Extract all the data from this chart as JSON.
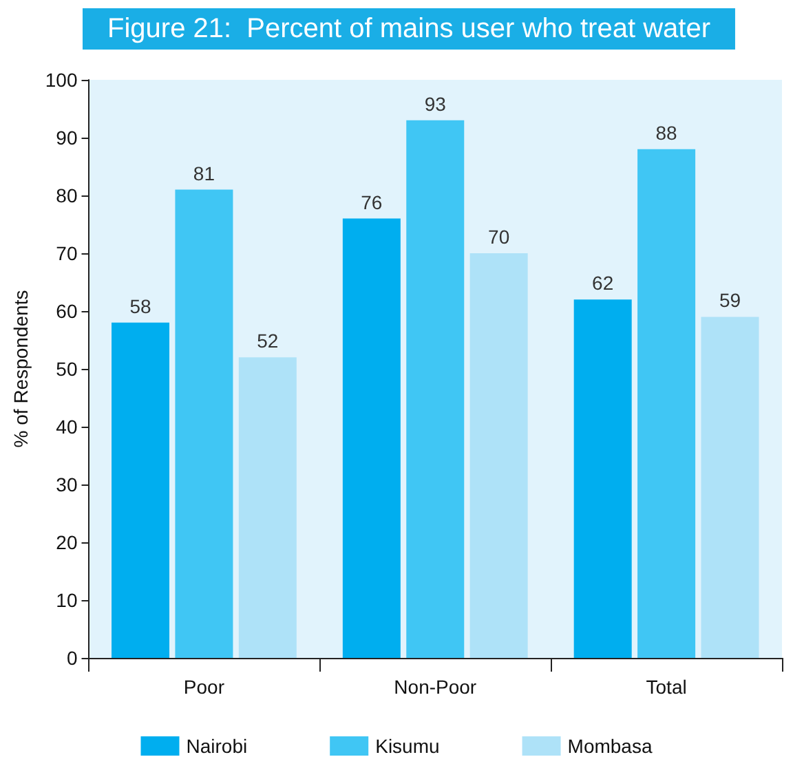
{
  "chart_data": {
    "type": "bar",
    "title": "Figure 21:  Percent of mains user who treat water",
    "ylabel": "% of Respondents",
    "categories": [
      "Poor",
      "Non-Poor",
      "Total"
    ],
    "series": [
      {
        "name": "Nairobi",
        "color": "#00aeef",
        "values": [
          58,
          76,
          62
        ]
      },
      {
        "name": "Kisumu",
        "color": "#40c6f4",
        "values": [
          81,
          93,
          88
        ]
      },
      {
        "name": "Mombasa",
        "color": "#aee2f8",
        "values": [
          52,
          70,
          59
        ]
      }
    ],
    "ylim": [
      0,
      100
    ],
    "yticks": [
      0,
      10,
      20,
      30,
      40,
      50,
      60,
      70,
      80,
      90,
      100
    ],
    "grid": false,
    "legend": "bottom",
    "data_labels": true
  }
}
